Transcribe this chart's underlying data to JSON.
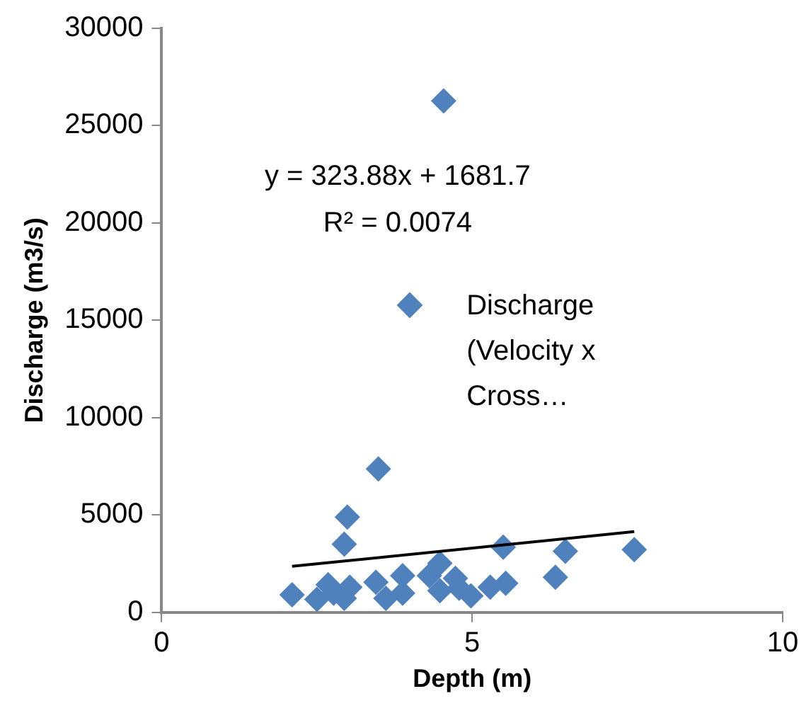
{
  "chart_data": {
    "type": "scatter",
    "xlabel": "Depth (m)",
    "ylabel": "Discharge (m3/s)",
    "xlim": [
      0,
      10
    ],
    "xticks": [
      0,
      5,
      10
    ],
    "ylim": [
      0,
      30000
    ],
    "yticks": [
      0,
      5000,
      10000,
      15000,
      20000,
      25000,
      30000
    ],
    "grid": false,
    "legend": "right",
    "marker": "diamond",
    "annotations": [
      "y = 323.88x + 1681.7",
      "R² = 0.0074"
    ],
    "series": [
      {
        "name": "Discharge (Velocity x Cross…",
        "color": "#4f81bd",
        "x": [
          4.54,
          3.49,
          2.99,
          2.94,
          5.5,
          6.5,
          7.61,
          6.34,
          2.1,
          2.5,
          2.68,
          2.77,
          2.94,
          3.03,
          3.45,
          3.61,
          3.88,
          3.88,
          4.31,
          4.48,
          4.48,
          4.73,
          4.98,
          5.29,
          5.54,
          4.79
        ],
        "values": [
          26270,
          7370,
          4890,
          3500,
          3350,
          3140,
          3220,
          1800,
          900,
          670,
          1420,
          980,
          720,
          1290,
          1550,
          720,
          1880,
          980,
          1880,
          2520,
          1110,
          1750,
          850,
          1290,
          1490,
          1240
        ]
      },
      {
        "type": "line",
        "color": "#000000",
        "marker": "none",
        "x": [
          2.1,
          7.61
        ],
        "values": [
          2362,
          4146
        ]
      }
    ]
  }
}
